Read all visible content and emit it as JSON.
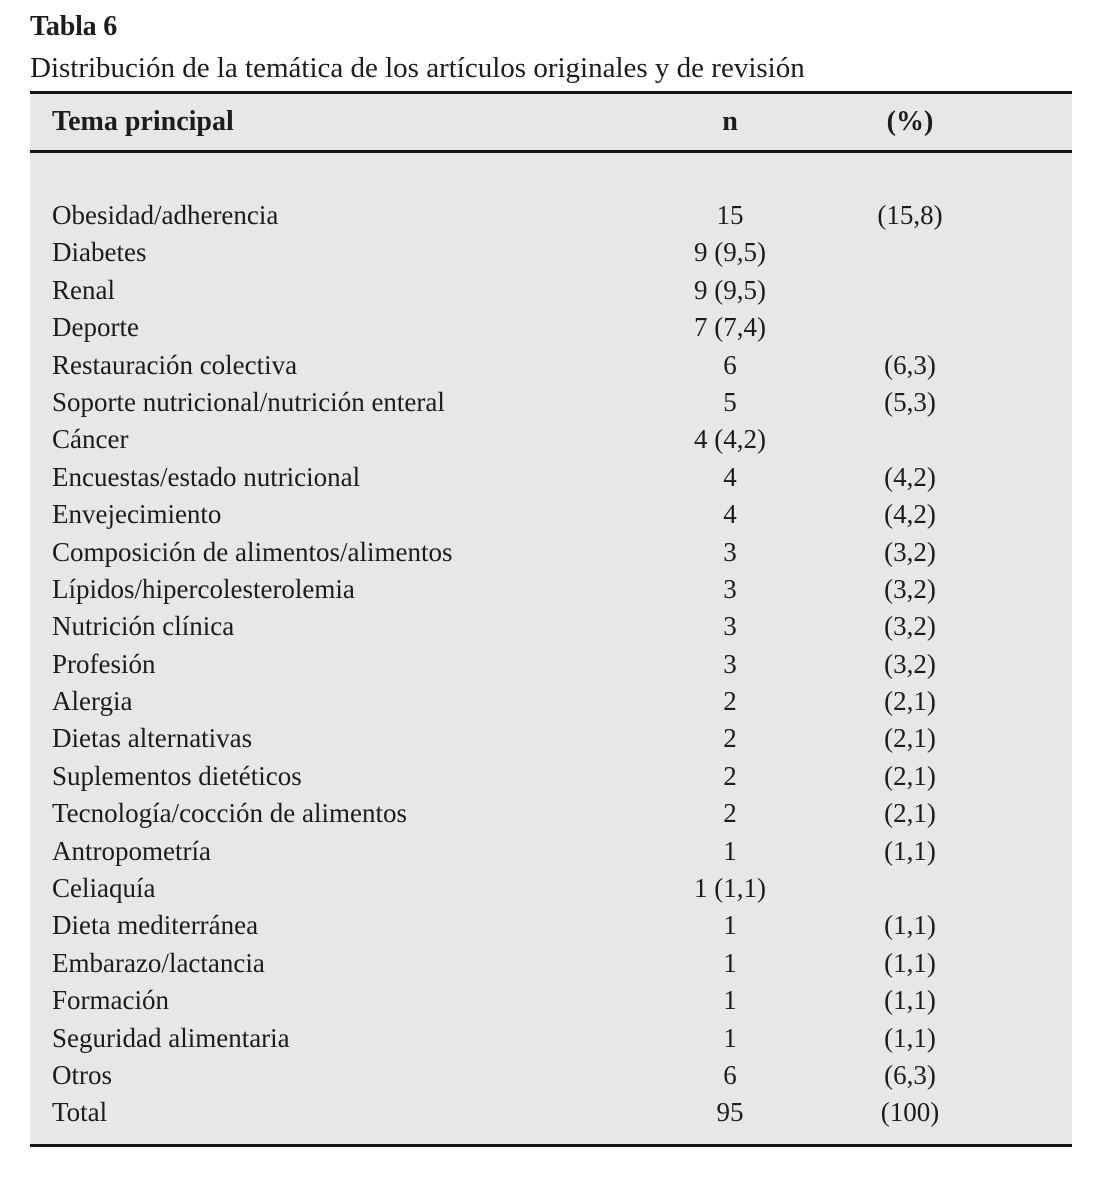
{
  "page": {
    "table_label": "Tabla 6",
    "caption": "Distribución de la temática de los artículos originales y de revisión"
  },
  "colors": {
    "table_background": "#e6e7e7",
    "rule": "#141414",
    "text": "#1c1c1c"
  },
  "table": {
    "headers": {
      "topic": "Tema principal",
      "n": "n",
      "pct": "(%)"
    },
    "rows": [
      {
        "label": "Obesidad/adherencia",
        "n": "15",
        "pct": "(15,8)"
      },
      {
        "label": "Diabetes",
        "n": "9 (9,5)",
        "pct": ""
      },
      {
        "label": "Renal",
        "n": "9 (9,5)",
        "pct": ""
      },
      {
        "label": "Deporte",
        "n": "7 (7,4)",
        "pct": ""
      },
      {
        "label": "Restauración colectiva",
        "n": "6",
        "pct": "(6,3)"
      },
      {
        "label": "Soporte nutricional/nutrición enteral",
        "n": "5",
        "pct": "(5,3)"
      },
      {
        "label": "Cáncer",
        "n": "4 (4,2)",
        "pct": ""
      },
      {
        "label": "Encuestas/estado nutricional",
        "n": "4",
        "pct": "(4,2)"
      },
      {
        "label": "Envejecimiento",
        "n": "4",
        "pct": "(4,2)"
      },
      {
        "label": "Composición de alimentos/alimentos",
        "n": "3",
        "pct": "(3,2)"
      },
      {
        "label": "Lípidos/hipercolesterolemia",
        "n": "3",
        "pct": "(3,2)"
      },
      {
        "label": "Nutrición clínica",
        "n": "3",
        "pct": "(3,2)"
      },
      {
        "label": "Profesión",
        "n": "3",
        "pct": "(3,2)"
      },
      {
        "label": "Alergia",
        "n": "2",
        "pct": "(2,1)"
      },
      {
        "label": "Dietas alternativas",
        "n": "2",
        "pct": "(2,1)"
      },
      {
        "label": "Suplementos dietéticos",
        "n": "2",
        "pct": "(2,1)"
      },
      {
        "label": "Tecnología/cocción de alimentos",
        "n": "2",
        "pct": "(2,1)"
      },
      {
        "label": "Antropometría",
        "n": "1",
        "pct": "(1,1)"
      },
      {
        "label": "Celiaquía",
        "n": "1 (1,1)",
        "pct": ""
      },
      {
        "label": "Dieta mediterránea",
        "n": "1",
        "pct": "(1,1)"
      },
      {
        "label": "Embarazo/lactancia",
        "n": "1",
        "pct": "(1,1)"
      },
      {
        "label": "Formación",
        "n": "1",
        "pct": "(1,1)"
      },
      {
        "label": "Seguridad alimentaria",
        "n": "1",
        "pct": "(1,1)"
      },
      {
        "label": "Otros",
        "n": "6",
        "pct": "(6,3)"
      },
      {
        "label": "Total",
        "n": "95",
        "pct": "(100)"
      }
    ]
  }
}
